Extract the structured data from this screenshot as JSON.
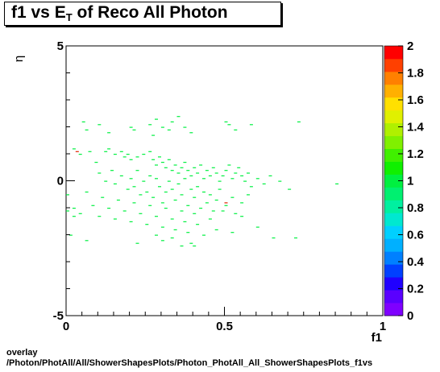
{
  "title": {
    "prefix": "f1 vs E",
    "subscript": "T",
    "suffix": " of Reco All Photon"
  },
  "footer": {
    "line1": "overlay",
    "line2": "/Photon/PhotAll/All/ShowerShapesPlots/Photon_PhotAll_All_ShowerShapesPlots_f1vs"
  },
  "chart_data": {
    "type": "heatmap",
    "xlabel": "f1",
    "ylabel": "η",
    "xlim": [
      0,
      1
    ],
    "ylim": [
      -5,
      5
    ],
    "x_ticks": [
      "0",
      "0.5",
      "1"
    ],
    "y_ticks": [
      "5",
      "0",
      "-5"
    ],
    "z_ticks": [
      "0",
      "0.2",
      "0.4",
      "0.6",
      "0.8",
      "1",
      "1.2",
      "1.4",
      "1.6",
      "1.8",
      "2"
    ],
    "zlim": [
      0,
      2
    ],
    "palette": [
      "#7f00ff",
      "#5a00ff",
      "#2000ff",
      "#0040ff",
      "#0080ff",
      "#00b0ff",
      "#00d0ff",
      "#00e8d0",
      "#00f0a0",
      "#00f070",
      "#00f040",
      "#10f000",
      "#40f000",
      "#80f000",
      "#b0f000",
      "#e0f000",
      "#ffe000",
      "#ffb000",
      "#ff8000",
      "#ff4000",
      "#ff0000"
    ],
    "markers": [
      [
        0.05,
        2.2,
        1
      ],
      [
        0.06,
        1.9,
        1
      ],
      [
        0.1,
        2.1,
        1
      ],
      [
        0.13,
        1.8,
        1
      ],
      [
        0.2,
        2.0,
        1
      ],
      [
        0.21,
        1.9,
        1
      ],
      [
        0.26,
        2.1,
        1
      ],
      [
        0.28,
        2.3,
        1
      ],
      [
        0.3,
        2.0,
        1
      ],
      [
        0.33,
        2.2,
        1
      ],
      [
        0.35,
        2.4,
        1
      ],
      [
        0.37,
        2.0,
        1
      ],
      [
        0.39,
        1.8,
        1
      ],
      [
        0.32,
        1.9,
        1
      ],
      [
        0.5,
        2.2,
        1
      ],
      [
        0.51,
        2.1,
        1
      ],
      [
        0.58,
        2.1,
        1
      ],
      [
        0.73,
        2.2,
        1
      ],
      [
        0.53,
        1.9,
        1
      ],
      [
        0.27,
        1.7,
        1
      ],
      [
        0.02,
        1.2,
        1
      ],
      [
        0.04,
        1.0,
        1
      ],
      [
        0.07,
        1.1,
        1
      ],
      [
        0.09,
        0.7,
        1
      ],
      [
        0.12,
        1.1,
        1
      ],
      [
        0.13,
        1.2,
        1
      ],
      [
        0.15,
        1.0,
        1
      ],
      [
        0.17,
        1.1,
        1
      ],
      [
        0.18,
        0.9,
        1
      ],
      [
        0.19,
        1.0,
        1
      ],
      [
        0.2,
        0.8,
        1
      ],
      [
        0.22,
        0.9,
        1
      ],
      [
        0.24,
        1.0,
        1
      ],
      [
        0.26,
        1.1,
        1
      ],
      [
        0.27,
        0.8,
        1
      ],
      [
        0.28,
        0.6,
        1
      ],
      [
        0.29,
        0.9,
        1
      ],
      [
        0.3,
        0.7,
        1
      ],
      [
        0.31,
        0.5,
        1
      ],
      [
        0.32,
        0.8,
        1
      ],
      [
        0.33,
        0.4,
        1
      ],
      [
        0.34,
        0.6,
        1
      ],
      [
        0.35,
        0.3,
        1
      ],
      [
        0.36,
        0.5,
        1
      ],
      [
        0.37,
        0.7,
        1
      ],
      [
        0.38,
        0.4,
        1
      ],
      [
        0.39,
        0.2,
        1
      ],
      [
        0.4,
        0.5,
        1
      ],
      [
        0.41,
        0.3,
        1
      ],
      [
        0.42,
        0.6,
        1
      ],
      [
        0.43,
        0.1,
        1
      ],
      [
        0.44,
        0.4,
        1
      ],
      [
        0.45,
        0.2,
        1
      ],
      [
        0.46,
        0.5,
        1
      ],
      [
        0.47,
        0.3,
        1
      ],
      [
        0.48,
        0.0,
        1
      ],
      [
        0.49,
        0.2,
        1
      ],
      [
        0.5,
        0.4,
        1
      ],
      [
        0.51,
        0.6,
        1
      ],
      [
        0.52,
        0.1,
        1
      ],
      [
        0.53,
        0.3,
        1
      ],
      [
        0.54,
        0.5,
        1
      ],
      [
        0.55,
        0.2,
        1
      ],
      [
        0.56,
        0.0,
        1
      ],
      [
        0.57,
        0.3,
        1
      ],
      [
        0.58,
        -0.2,
        1
      ],
      [
        0.6,
        0.1,
        1
      ],
      [
        0.62,
        -0.1,
        1
      ],
      [
        0.64,
        0.2,
        1
      ],
      [
        0.67,
        0.0,
        1
      ],
      [
        0.7,
        -0.3,
        1
      ],
      [
        0.85,
        -0.1,
        1
      ],
      [
        0.1,
        0.3,
        1
      ],
      [
        0.12,
        0.0,
        1
      ],
      [
        0.14,
        0.4,
        1
      ],
      [
        0.15,
        -0.1,
        1
      ],
      [
        0.17,
        0.2,
        1
      ],
      [
        0.19,
        -0.3,
        1
      ],
      [
        0.2,
        0.1,
        1
      ],
      [
        0.21,
        -0.2,
        1
      ],
      [
        0.22,
        0.4,
        1
      ],
      [
        0.23,
        -0.5,
        1
      ],
      [
        0.24,
        0.0,
        1
      ],
      [
        0.25,
        -0.4,
        1
      ],
      [
        0.26,
        0.2,
        1
      ],
      [
        0.27,
        -0.6,
        1
      ],
      [
        0.28,
        0.1,
        1
      ],
      [
        0.29,
        -0.2,
        1
      ],
      [
        0.3,
        -0.8,
        1
      ],
      [
        0.31,
        -0.4,
        1
      ],
      [
        0.32,
        0.0,
        1
      ],
      [
        0.33,
        -0.3,
        1
      ],
      [
        0.34,
        -0.7,
        1
      ],
      [
        0.35,
        -0.1,
        1
      ],
      [
        0.36,
        -0.5,
        1
      ],
      [
        0.37,
        0.1,
        1
      ],
      [
        0.38,
        -0.9,
        1
      ],
      [
        0.39,
        -0.3,
        1
      ],
      [
        0.4,
        -0.6,
        1
      ],
      [
        0.41,
        -0.2,
        1
      ],
      [
        0.42,
        -1.0,
        1
      ],
      [
        0.43,
        -0.4,
        1
      ],
      [
        0.44,
        -0.8,
        1
      ],
      [
        0.45,
        -0.5,
        1
      ],
      [
        0.46,
        -1.1,
        1
      ],
      [
        0.47,
        -0.7,
        1
      ],
      [
        0.48,
        -0.3,
        1
      ],
      [
        0.5,
        -0.9,
        1
      ],
      [
        0.52,
        -0.6,
        1
      ],
      [
        0.53,
        -1.2,
        1
      ],
      [
        0.55,
        -0.8,
        1
      ],
      [
        0.57,
        -0.5,
        1
      ],
      [
        0.0,
        -0.5,
        1
      ],
      [
        0.02,
        -1.0,
        1
      ],
      [
        0.04,
        -1.2,
        1
      ],
      [
        0.06,
        -0.4,
        1
      ],
      [
        0.08,
        -0.9,
        1
      ],
      [
        0.1,
        -1.3,
        1
      ],
      [
        0.11,
        -0.6,
        1
      ],
      [
        0.13,
        -1.0,
        1
      ],
      [
        0.15,
        -1.4,
        1
      ],
      [
        0.16,
        -0.7,
        1
      ],
      [
        0.18,
        -1.1,
        1
      ],
      [
        0.2,
        -1.5,
        1
      ],
      [
        0.21,
        -0.8,
        1
      ],
      [
        0.23,
        -1.2,
        1
      ],
      [
        0.25,
        -1.6,
        1
      ],
      [
        0.26,
        -0.9,
        1
      ],
      [
        0.28,
        -1.3,
        1
      ],
      [
        0.3,
        -1.7,
        1
      ],
      [
        0.31,
        -1.0,
        1
      ],
      [
        0.33,
        -1.4,
        1
      ],
      [
        0.34,
        -1.8,
        1
      ],
      [
        0.36,
        -1.1,
        1
      ],
      [
        0.37,
        -1.5,
        1
      ],
      [
        0.38,
        -1.9,
        1
      ],
      [
        0.4,
        -1.2,
        1
      ],
      [
        0.41,
        -1.6,
        1
      ],
      [
        0.43,
        -2.0,
        1
      ],
      [
        0.45,
        -1.4,
        1
      ],
      [
        0.47,
        -1.8,
        1
      ],
      [
        0.49,
        -1.1,
        1
      ],
      [
        0.52,
        -1.9,
        1
      ],
      [
        0.55,
        -1.3,
        1
      ],
      [
        0.6,
        -1.7,
        1
      ],
      [
        0.65,
        -2.1,
        1
      ],
      [
        0.72,
        -2.1,
        1
      ],
      [
        0.0,
        -1.1,
        1
      ],
      [
        0.02,
        -1.3,
        1
      ],
      [
        0.01,
        -2.0,
        1
      ],
      [
        0.06,
        -2.2,
        1
      ],
      [
        0.22,
        -2.3,
        1
      ],
      [
        0.33,
        -2.1,
        1
      ],
      [
        0.36,
        -2.4,
        1
      ],
      [
        0.39,
        -2.3,
        1
      ],
      [
        0.4,
        -2.4,
        1
      ],
      [
        0.3,
        -2.2,
        1
      ],
      [
        0.28,
        -2.0,
        1
      ],
      [
        0.03,
        1.1,
        2
      ],
      [
        0.5,
        -0.8,
        2
      ]
    ]
  }
}
